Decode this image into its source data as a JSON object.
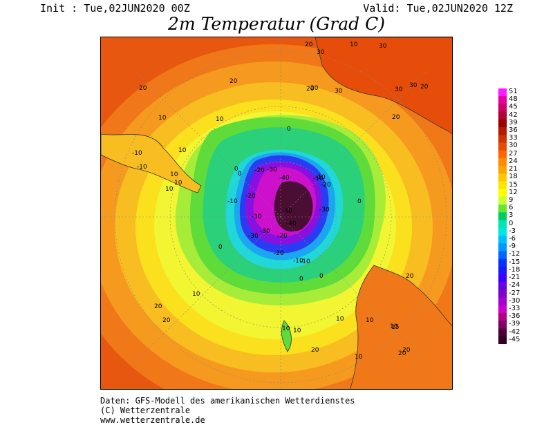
{
  "header": {
    "init": "Init : Tue,02JUN2020 00Z",
    "valid": "Valid: Tue,02JUN2020 12Z",
    "title": "2m Temperatur (Grad C)"
  },
  "footer": {
    "line1": "Daten: GFS-Modell des amerikanischen Wetterdienstes",
    "line2": "(C) Wetterzentrale",
    "line3": "www.wetterzentrale.de"
  },
  "legend": {
    "values": [
      "51",
      "48",
      "45",
      "42",
      "39",
      "36",
      "33",
      "30",
      "27",
      "24",
      "21",
      "18",
      "15",
      "12",
      "9",
      "6",
      "3",
      "0",
      "-3",
      "-6",
      "-9",
      "-12",
      "-15",
      "-18",
      "-21",
      "-24",
      "-27",
      "-30",
      "-33",
      "-36",
      "-39",
      "-42",
      "-45"
    ],
    "colors": [
      "#ff1aff",
      "#e60099",
      "#cc0066",
      "#b30033",
      "#990000",
      "#b31a00",
      "#cc3300",
      "#e64d00",
      "#ff6600",
      "#ff8c00",
      "#ffa500",
      "#ffc800",
      "#ffe600",
      "#ffff00",
      "#ccff33",
      "#66e633",
      "#00cc66",
      "#00e6b3",
      "#00e6e6",
      "#00bfff",
      "#0099ff",
      "#0066ff",
      "#0033ff",
      "#1a1aff",
      "#4000ff",
      "#6600e6",
      "#8000cc",
      "#a600cc",
      "#cc00cc",
      "#b30080",
      "#800066",
      "#4d0033",
      "#330026"
    ]
  },
  "contour_labels": [
    "20",
    "20",
    "20",
    "10",
    "10",
    "10",
    "10",
    "10",
    "0",
    "0",
    "0",
    "0",
    "-10",
    "-10",
    "-10",
    "-20",
    "-20",
    "-20",
    "-30",
    "-30",
    "-30",
    "-40",
    "-40",
    "-10",
    "-10",
    "-20",
    "-30",
    "0",
    "0",
    "10",
    "10",
    "10",
    "10",
    "20",
    "20",
    "20",
    "20",
    "20",
    "10",
    "10",
    "15",
    "20",
    "20",
    "30",
    "30",
    "30",
    "30",
    "30",
    "20",
    "20",
    "20",
    "10",
    "10",
    "10",
    "0",
    "-10",
    "-10",
    "-20",
    "-30",
    "-40"
  ]
}
